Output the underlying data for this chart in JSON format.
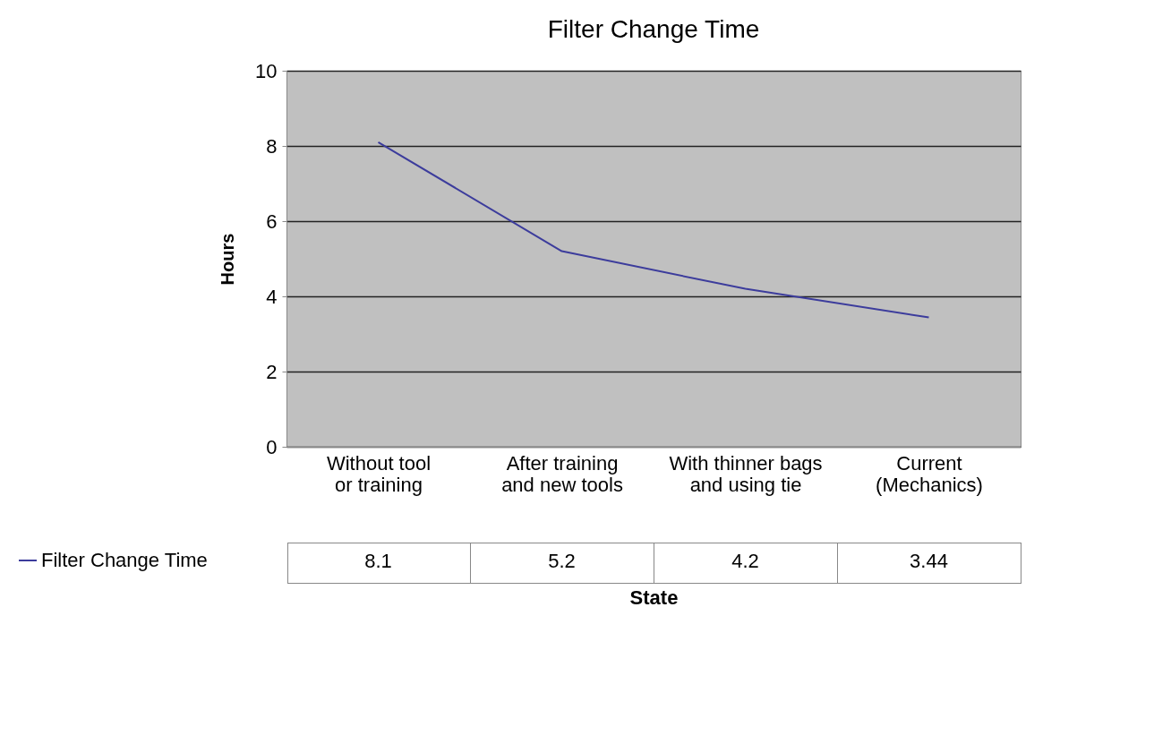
{
  "chart_data": {
    "type": "line",
    "title": "Filter Change Time",
    "xlabel": "State",
    "ylabel": "Hours",
    "categories": [
      "Without tool or training",
      "After training and new tools",
      "With thinner bags and using tie",
      "Current (Mechanics)"
    ],
    "series": [
      {
        "name": "Filter Change Time",
        "color": "#3c3c9c",
        "values": [
          8.1,
          5.2,
          4.2,
          3.44
        ]
      }
    ],
    "ylim": [
      0,
      10
    ],
    "yticks": [
      0,
      2,
      4,
      6,
      8,
      10
    ],
    "grid": "y",
    "legend": "bottom",
    "data_labels": true
  }
}
